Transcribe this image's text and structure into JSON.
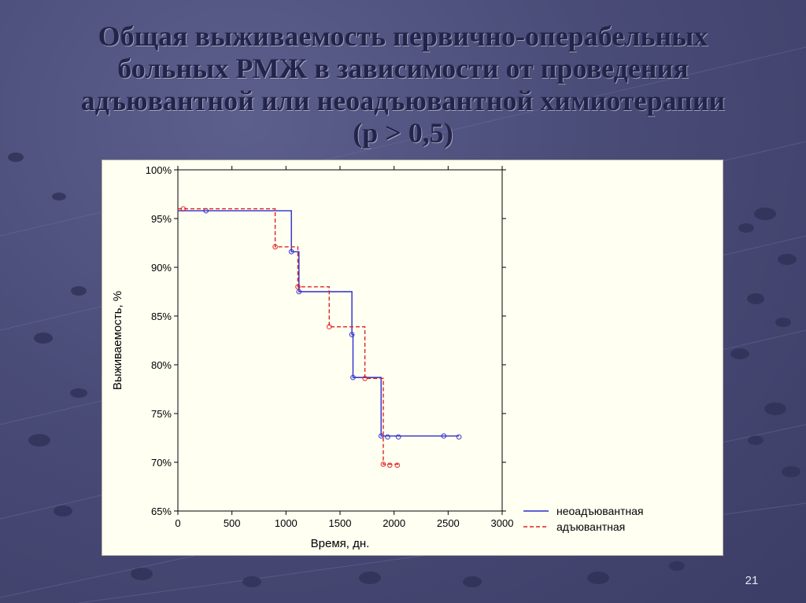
{
  "slide": {
    "title_lines": [
      "Общая выживаемость первично-операбельных",
      "больных РМЖ в зависимости от проведения",
      "адъювантной или неоадъювантной химиотерапии",
      "(р > 0,5)"
    ],
    "page_number": "21"
  },
  "colors": {
    "background": "#4a4c78",
    "title": "#23244a",
    "panel": "#fffff2",
    "series_neoadjuvant": "#2b2bcc",
    "series_adjuvant": "#e02020"
  },
  "chart_data": {
    "type": "line",
    "title": "",
    "xlabel": "Время, дн.",
    "ylabel": "Выживаемость, %",
    "xlim": [
      0,
      3000
    ],
    "ylim": [
      65,
      100
    ],
    "x_ticks": [
      0,
      500,
      1000,
      1500,
      2000,
      2500,
      3000
    ],
    "x_tick_labels": [
      "0",
      "500",
      "1000",
      "1500",
      "2000",
      "2500",
      "3000"
    ],
    "y_ticks": [
      100,
      95,
      90,
      85,
      80,
      75,
      70,
      65
    ],
    "y_tick_labels": [
      "100%",
      "95%",
      "90%",
      "85%",
      "80%",
      "75%",
      "70%",
      "65%"
    ],
    "grid": false,
    "legend_position": "bottom-right outside",
    "series": [
      {
        "name": "неоадъювантная",
        "style": "solid",
        "color": "#2b2bcc",
        "steps": [
          [
            0,
            95.8
          ],
          [
            1050,
            91.6
          ],
          [
            1120,
            87.5
          ],
          [
            1610,
            83.1
          ],
          [
            1620,
            78.7
          ],
          [
            1880,
            72.7
          ],
          [
            2600,
            72.7
          ]
        ],
        "censored": [
          [
            260,
            95.8
          ],
          [
            1050,
            91.6
          ],
          [
            1120,
            87.5
          ],
          [
            1610,
            83.1
          ],
          [
            1620,
            78.7
          ],
          [
            1880,
            72.7
          ],
          [
            1940,
            72.6
          ],
          [
            2040,
            72.6
          ],
          [
            2460,
            72.7
          ],
          [
            2600,
            72.6
          ]
        ]
      },
      {
        "name": "адъювантная",
        "style": "dashed",
        "color": "#e02020",
        "steps": [
          [
            0,
            96.0
          ],
          [
            900,
            92.1
          ],
          [
            1110,
            88.0
          ],
          [
            1400,
            83.9
          ],
          [
            1730,
            78.6
          ],
          [
            1900,
            69.8
          ],
          [
            2040,
            69.8
          ]
        ],
        "censored": [
          [
            50,
            96.0
          ],
          [
            900,
            92.1
          ],
          [
            1110,
            88.0
          ],
          [
            1400,
            83.9
          ],
          [
            1730,
            78.6
          ],
          [
            1900,
            69.8
          ],
          [
            1960,
            69.7
          ],
          [
            2030,
            69.7
          ]
        ]
      }
    ]
  }
}
